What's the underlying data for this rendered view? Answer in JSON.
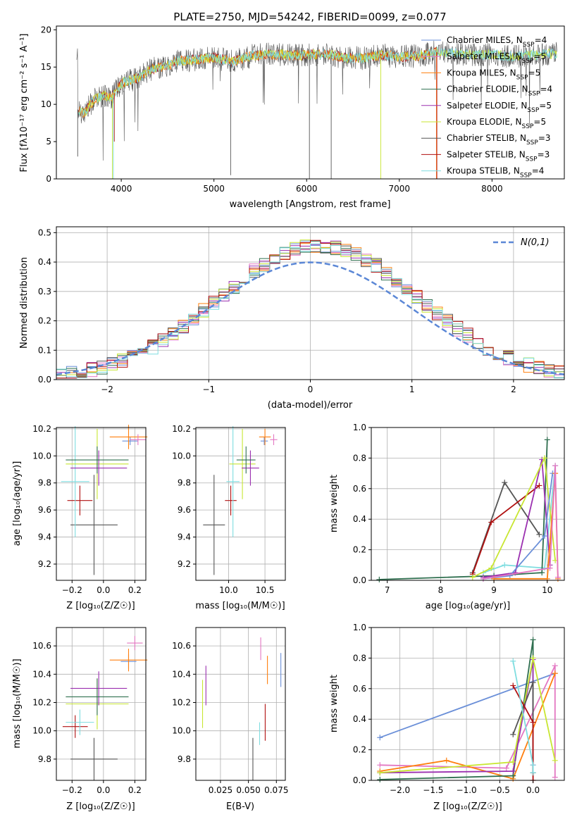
{
  "figure_title": "PLATE=2750, MJD=54242, FIBERID=0099, z=0.077",
  "colors": {
    "chabrier_miles": "#6a8fd8",
    "salpeter_miles": "#e377c2",
    "kroupa_miles": "#ff7f0e",
    "chabrier_elodie": "#2f6f4f",
    "salpeter_elodie": "#9b30b0",
    "kroupa_elodie": "#c8e632",
    "chabrier_stelib": "#555555",
    "salpeter_stelib": "#b01010",
    "kroupa_stelib": "#7fdde0",
    "normal": "#5b87d6"
  },
  "chart_data": [
    {
      "type": "line",
      "id": "spectrum",
      "title": "PLATE=2750, MJD=54242, FIBERID=0099, z=0.077",
      "xlabel": "wavelength [Angstrom, rest frame]",
      "ylabel": "Flux [fλ10⁻¹⁷ erg cm⁻² s⁻¹ A⁻¹]",
      "xlim": [
        3300,
        8780
      ],
      "ylim": [
        0,
        20.5
      ],
      "xticks": [
        4000,
        5000,
        6000,
        7000,
        8000
      ],
      "yticks": [
        0,
        5,
        10,
        15,
        20
      ],
      "legend": [
        "Chabrier MILES, N_SSP=4",
        "Salpeter MILES, N_SSP=5",
        "Kroupa MILES, N_SSP=5",
        "Chabrier ELODIE, N_SSP=4",
        "Salpeter ELODIE, N_SSP=5",
        "Kroupa ELODIE, N_SSP=5",
        "Chabrier STELIB, N_SSP=3",
        "Salpeter STELIB, N_SSP=3",
        "Kroupa STELIB, N_SSP=4"
      ],
      "continuum": {
        "x": [
          3530,
          3600,
          3700,
          3800,
          3900,
          4000,
          4100,
          4200,
          4300,
          4400,
          4500,
          4600,
          4800,
          5000,
          5200,
          5400,
          5600,
          5800,
          6000,
          6200,
          6400,
          6600,
          6800,
          7000,
          7200,
          7400,
          7600,
          7800,
          8000,
          8200,
          8400,
          8700
        ],
        "y": [
          9.3,
          8.8,
          10.5,
          11.2,
          11.0,
          12.8,
          13.2,
          13.6,
          14.6,
          15.0,
          15.2,
          15.8,
          16.0,
          16.3,
          15.7,
          16.5,
          16.7,
          16.6,
          16.6,
          16.8,
          16.3,
          16.2,
          16.6,
          16.4,
          16.5,
          17.0,
          16.9,
          16.6,
          16.7,
          16.4,
          16.6,
          16.8
        ]
      }
    },
    {
      "type": "line",
      "id": "residual-histogram",
      "xlabel": "(data-model)/error",
      "ylabel": "Normed distribution",
      "xlim": [
        -2.5,
        2.5
      ],
      "ylim": [
        0,
        0.52
      ],
      "xticks": [
        -2,
        -1,
        0,
        1,
        2
      ],
      "yticks": [
        0.0,
        0.1,
        0.2,
        0.3,
        0.4,
        0.5
      ],
      "legend": [
        "N(0,1)"
      ],
      "bin_width": 0.1
    },
    {
      "type": "scatter",
      "id": "age-vs-Z",
      "xlabel": "Z [log₁₀(Z/Z☉)]",
      "ylabel": "age  [log₁₀(age/yr)]",
      "xlim": [
        -0.3,
        0.27
      ],
      "ylim": [
        9.08,
        10.21
      ],
      "xticks": [
        -0.2,
        0.0,
        0.2
      ],
      "yticks": [
        9.2,
        9.4,
        9.6,
        9.8,
        10.0,
        10.2
      ],
      "points": [
        {
          "series": "chabrier_stelib",
          "x": -0.06,
          "y": 9.49,
          "xerr": 0.15,
          "yerr": 0.37
        },
        {
          "series": "salpeter_stelib",
          "x": -0.15,
          "y": 9.67,
          "xerr": 0.08,
          "yerr": 0.11
        },
        {
          "series": "kroupa_stelib",
          "x": -0.18,
          "y": 9.81,
          "xerr": 0.09,
          "yerr": 0.41
        },
        {
          "series": "kroupa_elodie",
          "x": -0.04,
          "y": 9.94,
          "xerr": 0.2,
          "yerr": 0.26
        },
        {
          "series": "salpeter_elodie",
          "x": -0.03,
          "y": 9.91,
          "xerr": 0.18,
          "yerr": 0.13
        },
        {
          "series": "chabrier_elodie",
          "x": -0.04,
          "y": 9.97,
          "xerr": 0.2,
          "yerr": 0.1
        },
        {
          "series": "chabrier_miles",
          "x": 0.17,
          "y": 10.11,
          "xerr": 0.05,
          "yerr": 0.03
        },
        {
          "series": "kroupa_miles",
          "x": 0.16,
          "y": 10.14,
          "xerr": 0.12,
          "yerr": 0.09
        },
        {
          "series": "salpeter_miles",
          "x": 0.22,
          "y": 10.12,
          "xerr": 0.05,
          "yerr": 0.04
        }
      ]
    },
    {
      "type": "scatter",
      "id": "age-vs-mass",
      "xlabel": "mass [log₁₀(M/M☉)]",
      "ylabel": "",
      "xlim": [
        9.55,
        10.78
      ],
      "ylim": [
        9.08,
        10.21
      ],
      "xticks": [
        10.0,
        10.5
      ],
      "yticks": [
        9.2,
        9.4,
        9.6,
        9.8,
        10.0,
        10.2
      ],
      "points": [
        {
          "series": "chabrier_stelib",
          "x": 9.8,
          "y": 9.49,
          "xerr": 0.15,
          "yerr": 0.37
        },
        {
          "series": "salpeter_stelib",
          "x": 10.03,
          "y": 9.67,
          "xerr": 0.08,
          "yerr": 0.11
        },
        {
          "series": "kroupa_stelib",
          "x": 10.06,
          "y": 9.81,
          "xerr": 0.09,
          "yerr": 0.41
        },
        {
          "series": "kroupa_elodie",
          "x": 10.19,
          "y": 9.94,
          "xerr": 0.18,
          "yerr": 0.26
        },
        {
          "series": "salpeter_elodie",
          "x": 10.3,
          "y": 9.91,
          "xerr": 0.12,
          "yerr": 0.13
        },
        {
          "series": "chabrier_elodie",
          "x": 10.24,
          "y": 9.97,
          "xerr": 0.13,
          "yerr": 0.1
        },
        {
          "series": "chabrier_miles",
          "x": 10.49,
          "y": 10.11,
          "xerr": 0.05,
          "yerr": 0.03
        },
        {
          "series": "kroupa_miles",
          "x": 10.5,
          "y": 10.14,
          "xerr": 0.08,
          "yerr": 0.06
        },
        {
          "series": "salpeter_miles",
          "x": 10.62,
          "y": 10.12,
          "xerr": 0.05,
          "yerr": 0.04
        }
      ]
    },
    {
      "type": "line",
      "id": "mass-weight-vs-age",
      "xlabel": "age  [log₁₀(age/yr)]",
      "ylabel": "mass weight",
      "xlim": [
        6.7,
        10.32
      ],
      "ylim": [
        0,
        1.0
      ],
      "xticks": [
        7,
        8,
        9,
        10
      ],
      "yticks": [
        0.0,
        0.2,
        0.4,
        0.6,
        0.8,
        1.0
      ],
      "series": [
        {
          "key": "chabrier_stelib",
          "x": [
            8.6,
            9.2,
            9.85
          ],
          "y": [
            0.05,
            0.64,
            0.3
          ]
        },
        {
          "key": "salpeter_stelib",
          "x": [
            8.6,
            8.95,
            9.85
          ],
          "y": [
            0.04,
            0.38,
            0.62
          ]
        },
        {
          "key": "kroupa_stelib",
          "x": [
            8.8,
            9.2,
            9.95,
            10.15
          ],
          "y": [
            0.05,
            0.1,
            0.08,
            0.75
          ]
        },
        {
          "key": "chabrier_elodie",
          "x": [
            6.85,
            9.0,
            9.9,
            10.0
          ],
          "y": [
            0.005,
            0.03,
            0.05,
            0.92
          ]
        },
        {
          "key": "salpeter_elodie",
          "x": [
            8.8,
            9.4,
            9.9,
            10.05
          ],
          "y": [
            0.02,
            0.05,
            0.79,
            0.1
          ]
        },
        {
          "key": "kroupa_elodie",
          "x": [
            8.6,
            8.95,
            9.95,
            10.15
          ],
          "y": [
            0.02,
            0.08,
            0.8,
            0.13
          ]
        },
        {
          "key": "chabrier_miles",
          "x": [
            8.8,
            9.3,
            9.95,
            10.1
          ],
          "y": [
            0.01,
            0.03,
            0.29,
            0.7
          ]
        },
        {
          "key": "kroupa_miles",
          "x": [
            9.0,
            10.0,
            10.15,
            10.2
          ],
          "y": [
            0.01,
            0.01,
            0.7,
            0.01
          ]
        },
        {
          "key": "salpeter_miles",
          "x": [
            8.8,
            10.05,
            10.15,
            10.2
          ],
          "y": [
            0.01,
            0.08,
            0.75,
            0.02
          ]
        }
      ]
    },
    {
      "type": "scatter",
      "id": "mass-vs-Z",
      "xlabel": "Z [log₁₀(Z/Z☉)]",
      "ylabel": "mass [log₁₀(M/M☉)]",
      "xlim": [
        -0.3,
        0.27
      ],
      "ylim": [
        9.65,
        10.73
      ],
      "xticks": [
        -0.2,
        0.0,
        0.2
      ],
      "yticks": [
        9.8,
        10.0,
        10.2,
        10.4,
        10.6
      ],
      "points": [
        {
          "series": "chabrier_stelib",
          "x": -0.06,
          "y": 9.8,
          "xerr": 0.15,
          "yerr": 0.15
        },
        {
          "series": "salpeter_stelib",
          "x": -0.18,
          "y": 10.03,
          "xerr": 0.08,
          "yerr": 0.08
        },
        {
          "series": "kroupa_stelib",
          "x": -0.15,
          "y": 10.06,
          "xerr": 0.09,
          "yerr": 0.09
        },
        {
          "series": "kroupa_elodie",
          "x": -0.04,
          "y": 10.19,
          "xerr": 0.2,
          "yerr": 0.18
        },
        {
          "series": "salpeter_elodie",
          "x": -0.03,
          "y": 10.3,
          "xerr": 0.18,
          "yerr": 0.12
        },
        {
          "series": "chabrier_elodie",
          "x": -0.04,
          "y": 10.24,
          "xerr": 0.2,
          "yerr": 0.13
        },
        {
          "series": "chabrier_miles",
          "x": 0.16,
          "y": 10.49,
          "xerr": 0.05,
          "yerr": 0.05
        },
        {
          "series": "kroupa_miles",
          "x": 0.16,
          "y": 10.5,
          "xerr": 0.12,
          "yerr": 0.08
        },
        {
          "series": "salpeter_miles",
          "x": 0.2,
          "y": 10.62,
          "xerr": 0.05,
          "yerr": 0.05
        }
      ]
    },
    {
      "type": "scatter",
      "id": "mass-vs-ebv",
      "xlabel": "E(B-V)",
      "ylabel": "",
      "xlim": [
        0.003,
        0.083
      ],
      "ylim": [
        9.65,
        10.73
      ],
      "xticks": [
        0.025,
        0.05,
        0.075
      ],
      "yticks": [
        9.8,
        10.0,
        10.2,
        10.4,
        10.6
      ],
      "points": [
        {
          "series": "chabrier_stelib",
          "x": 0.054,
          "y": 9.8,
          "yerr": 0.15
        },
        {
          "series": "salpeter_stelib",
          "x": 0.065,
          "y": 10.06,
          "yerr": 0.13
        },
        {
          "series": "kroupa_stelib",
          "x": 0.06,
          "y": 9.98,
          "yerr": 0.08
        },
        {
          "series": "kroupa_elodie",
          "x": 0.009,
          "y": 10.19,
          "yerr": 0.17
        },
        {
          "series": "salpeter_elodie",
          "x": 0.012,
          "y": 10.32,
          "yerr": 0.14
        },
        {
          "series": "chabrier_miles",
          "x": 0.079,
          "y": 10.43,
          "yerr": 0.12
        },
        {
          "series": "kroupa_miles",
          "x": 0.067,
          "y": 10.43,
          "yerr": 0.1
        },
        {
          "series": "salpeter_miles",
          "x": 0.061,
          "y": 10.58,
          "yerr": 0.08
        }
      ]
    },
    {
      "type": "line",
      "id": "mass-weight-vs-Z",
      "xlabel": "Z [log₁₀(Z/Z☉)]",
      "ylabel": "mass weight",
      "xlim": [
        -2.43,
        0.47
      ],
      "ylim": [
        0,
        1.0
      ],
      "xticks": [
        -2.0,
        -1.5,
        -1.0,
        -0.5,
        0.0
      ],
      "yticks": [
        0.0,
        0.2,
        0.4,
        0.6,
        0.8,
        1.0
      ],
      "series": [
        {
          "key": "chabrier_miles",
          "x": [
            -2.3,
            0.33
          ],
          "y": [
            0.28,
            0.7
          ]
        },
        {
          "key": "salpeter_miles",
          "x": [
            -2.3,
            -0.4,
            0.33,
            0.33
          ],
          "y": [
            0.1,
            0.08,
            0.75,
            0.02
          ]
        },
        {
          "key": "kroupa_miles",
          "x": [
            -2.3,
            -1.3,
            -0.3,
            0.33
          ],
          "y": [
            0.06,
            0.13,
            0.01,
            0.7
          ]
        },
        {
          "key": "chabrier_elodie",
          "x": [
            -2.3,
            -0.3,
            0.0,
            0.0
          ],
          "y": [
            0.005,
            0.03,
            0.92,
            0.05
          ]
        },
        {
          "key": "salpeter_elodie",
          "x": [
            -2.3,
            -0.3,
            0.0,
            0.0
          ],
          "y": [
            0.05,
            0.06,
            0.79,
            0.1
          ]
        },
        {
          "key": "kroupa_elodie",
          "x": [
            -2.3,
            -0.3,
            0.0,
            0.33
          ],
          "y": [
            0.05,
            0.12,
            0.8,
            0.13
          ]
        },
        {
          "key": "chabrier_stelib",
          "x": [
            -0.3,
            0.0,
            0.0
          ],
          "y": [
            0.3,
            0.64,
            0.05
          ]
        },
        {
          "key": "salpeter_stelib",
          "x": [
            -0.3,
            0.0,
            0.0
          ],
          "y": [
            0.62,
            0.38,
            0.0
          ]
        },
        {
          "key": "kroupa_stelib",
          "x": [
            -0.3,
            0.0,
            0.0
          ],
          "y": [
            0.78,
            0.1,
            0.05
          ]
        }
      ]
    }
  ]
}
